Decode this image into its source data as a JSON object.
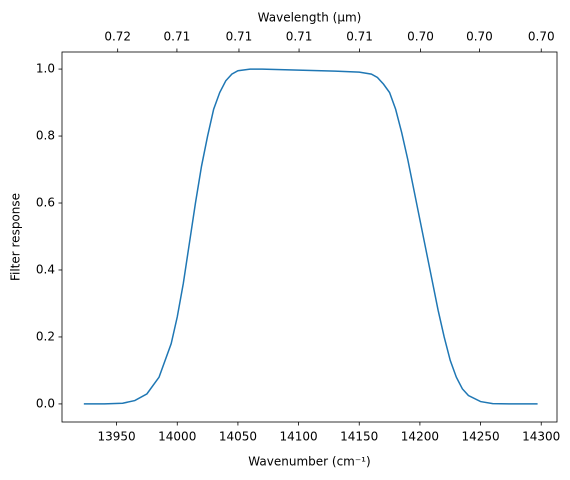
{
  "chart_data": {
    "type": "line",
    "xlabel": "Wavenumber (cm⁻¹)",
    "ylabel": "Filter response",
    "x2label": "Wavelength (μm)",
    "color": "#1f77b4",
    "x": [
      13923,
      13940,
      13955,
      13965,
      13975,
      13985,
      13995,
      14000,
      14005,
      14010,
      14015,
      14020,
      14025,
      14030,
      14035,
      14040,
      14045,
      14050,
      14060,
      14070,
      14100,
      14130,
      14150,
      14160,
      14165,
      14170,
      14175,
      14180,
      14185,
      14190,
      14195,
      14200,
      14205,
      14210,
      14215,
      14220,
      14225,
      14230,
      14235,
      14240,
      14250,
      14260,
      14275,
      14297
    ],
    "values": [
      0,
      0,
      0.002,
      0.01,
      0.03,
      0.08,
      0.18,
      0.26,
      0.36,
      0.48,
      0.6,
      0.71,
      0.8,
      0.88,
      0.93,
      0.965,
      0.985,
      0.995,
      1.0,
      1.0,
      0.997,
      0.994,
      0.991,
      0.985,
      0.975,
      0.955,
      0.93,
      0.88,
      0.81,
      0.73,
      0.64,
      0.55,
      0.46,
      0.37,
      0.28,
      0.2,
      0.13,
      0.08,
      0.045,
      0.025,
      0.007,
      0.001,
      0,
      0
    ],
    "xlim": [
      13905,
      14313
    ],
    "ylim": [
      -0.054,
      1.051
    ],
    "xticks": [
      13950,
      14000,
      14050,
      14100,
      14150,
      14200,
      14250,
      14300
    ],
    "yticks": [
      {
        "value": 0,
        "label": "0.0"
      },
      {
        "value": 0.2,
        "label": "0.2"
      },
      {
        "value": 0.4,
        "label": "0.4"
      },
      {
        "value": 0.6,
        "label": "0.6"
      },
      {
        "value": 0.8,
        "label": "0.8"
      },
      {
        "value": 1,
        "label": "1.0"
      }
    ],
    "x2ticks": [
      {
        "value": 0.7168,
        "label": "0.72"
      },
      {
        "value": 0.7143,
        "label": "0.71"
      },
      {
        "value": 0.7117,
        "label": "0.71"
      },
      {
        "value": 0.7092,
        "label": "0.71"
      },
      {
        "value": 0.7067,
        "label": "0.71"
      },
      {
        "value": 0.7042,
        "label": "0.70"
      },
      {
        "value": 0.7018,
        "label": "0.70"
      },
      {
        "value": 0.6993,
        "label": "0.70"
      }
    ]
  }
}
